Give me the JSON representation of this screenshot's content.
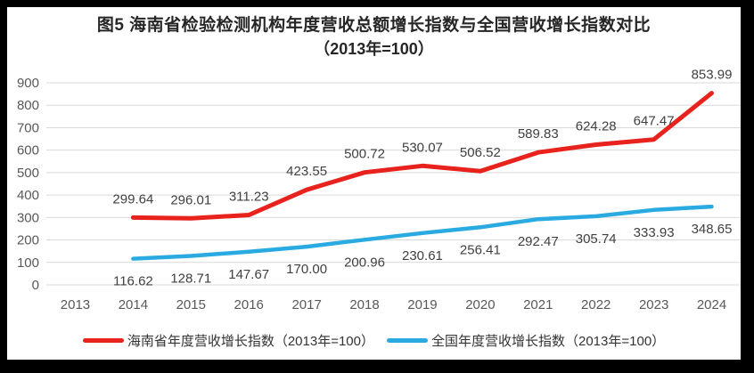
{
  "figure": {
    "title_line1": "图5  海南省检验检测机构年度营收总额增长指数与全国营收增长指数对比",
    "title_line2": "（2013年=100）"
  },
  "chart_data": {
    "type": "line",
    "title": "图5 海南省检验检测机构年度营收总额增长指数与全国营收增长指数对比（2013年=100）",
    "categories": [
      "2013",
      "2014",
      "2015",
      "2016",
      "2017",
      "2018",
      "2019",
      "2020",
      "2021",
      "2022",
      "2023",
      "2024"
    ],
    "series": [
      {
        "name": "海南省年度营收增长指数（2013年=100）",
        "color": "#e8221c",
        "data_label_position": "above",
        "values": [
          null,
          299.64,
          296.01,
          311.23,
          423.55,
          500.72,
          530.07,
          506.52,
          589.83,
          624.28,
          647.47,
          853.99
        ]
      },
      {
        "name": "全国年度营收增长指数（2013年=100）",
        "color": "#29abe2",
        "data_label_position": "below",
        "values": [
          null,
          116.62,
          128.71,
          147.67,
          170.0,
          200.96,
          230.61,
          256.41,
          292.47,
          305.74,
          333.93,
          348.65
        ]
      }
    ],
    "ylim": [
      0,
      900
    ],
    "ytick_step": 100,
    "ytick_labels": [
      "0",
      "100",
      "200",
      "300",
      "400",
      "500",
      "600",
      "700",
      "800",
      "900"
    ],
    "grid": "horizontal",
    "legend_position": "bottom",
    "colors": {
      "background": "#ffffff",
      "frame": "#000000",
      "gridline": "#d9d9d9",
      "axis_label": "#595959",
      "data_label": "#404040",
      "title": "#262626"
    }
  }
}
